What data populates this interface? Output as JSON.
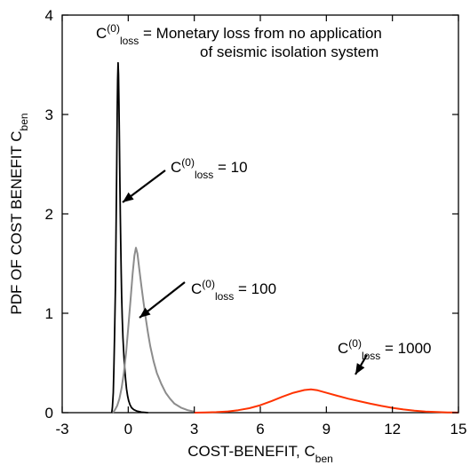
{
  "chart_data": {
    "type": "line",
    "xlabel": {
      "main": "COST-BENEFIT, C",
      "sub": "ben"
    },
    "ylabel": {
      "main": "PDF OF COST BENEFIT C",
      "sub": "ben"
    },
    "xlim": [
      -3,
      15
    ],
    "ylim": [
      0,
      4
    ],
    "xticks": [
      -3,
      0,
      3,
      6,
      9,
      12,
      15
    ],
    "yticks": [
      0,
      1,
      2,
      3,
      4
    ],
    "grid": false,
    "legend_note": {
      "line1_prefix": "C",
      "sup": "(0)",
      "sub": "loss",
      "line1_suffix": " = Monetary loss from no application",
      "line2": "of seismic isolation system"
    },
    "series": [
      {
        "key": "c10",
        "color": "#000000",
        "label": {
          "prefix": "C",
          "sup": "(0)",
          "sub": "loss",
          "suffix": " = 10"
        },
        "points": [
          [
            -0.75,
            0
          ],
          [
            -0.72,
            0.05
          ],
          [
            -0.68,
            0.2
          ],
          [
            -0.65,
            0.45
          ],
          [
            -0.62,
            0.8
          ],
          [
            -0.58,
            1.3
          ],
          [
            -0.55,
            1.9
          ],
          [
            -0.52,
            2.5
          ],
          [
            -0.5,
            3.0
          ],
          [
            -0.48,
            3.35
          ],
          [
            -0.46,
            3.52
          ],
          [
            -0.44,
            3.4
          ],
          [
            -0.42,
            3.1
          ],
          [
            -0.4,
            2.75
          ],
          [
            -0.38,
            2.35
          ],
          [
            -0.36,
            2.0
          ],
          [
            -0.34,
            1.7
          ],
          [
            -0.32,
            1.42
          ],
          [
            -0.3,
            1.18
          ],
          [
            -0.27,
            0.95
          ],
          [
            -0.24,
            0.75
          ],
          [
            -0.2,
            0.58
          ],
          [
            -0.16,
            0.44
          ],
          [
            -0.12,
            0.33
          ],
          [
            -0.08,
            0.24
          ],
          [
            -0.03,
            0.17
          ],
          [
            0.02,
            0.12
          ],
          [
            0.08,
            0.08
          ],
          [
            0.15,
            0.05
          ],
          [
            0.25,
            0.03
          ],
          [
            0.4,
            0.015
          ],
          [
            0.6,
            0.005
          ],
          [
            0.9,
            0
          ]
        ]
      },
      {
        "key": "c100",
        "color": "#8c8c8c",
        "label": {
          "prefix": "C",
          "sup": "(0)",
          "sub": "loss",
          "suffix": " = 100"
        },
        "points": [
          [
            -0.7,
            0
          ],
          [
            -0.6,
            0.03
          ],
          [
            -0.5,
            0.07
          ],
          [
            -0.4,
            0.14
          ],
          [
            -0.3,
            0.25
          ],
          [
            -0.2,
            0.4
          ],
          [
            -0.1,
            0.6
          ],
          [
            0,
            0.85
          ],
          [
            0.1,
            1.12
          ],
          [
            0.2,
            1.4
          ],
          [
            0.28,
            1.58
          ],
          [
            0.35,
            1.66
          ],
          [
            0.42,
            1.6
          ],
          [
            0.5,
            1.45
          ],
          [
            0.6,
            1.27
          ],
          [
            0.7,
            1.1
          ],
          [
            0.8,
            0.94
          ],
          [
            0.9,
            0.8
          ],
          [
            1.0,
            0.67
          ],
          [
            1.15,
            0.52
          ],
          [
            1.3,
            0.4
          ],
          [
            1.5,
            0.29
          ],
          [
            1.7,
            0.2
          ],
          [
            1.9,
            0.14
          ],
          [
            2.1,
            0.09
          ],
          [
            2.4,
            0.05
          ],
          [
            2.7,
            0.025
          ],
          [
            3.0,
            0.01
          ]
        ]
      },
      {
        "key": "c1000",
        "color": "#ff3300",
        "label": {
          "prefix": "C",
          "sup": "(0)",
          "sub": "loss",
          "suffix": " = 1000"
        },
        "points": [
          [
            3.0,
            0
          ],
          [
            3.5,
            0.002
          ],
          [
            4.0,
            0.005
          ],
          [
            4.5,
            0.012
          ],
          [
            5.0,
            0.025
          ],
          [
            5.5,
            0.045
          ],
          [
            6.0,
            0.075
          ],
          [
            6.5,
            0.115
          ],
          [
            7.0,
            0.16
          ],
          [
            7.5,
            0.2
          ],
          [
            8.0,
            0.228
          ],
          [
            8.3,
            0.235
          ],
          [
            8.6,
            0.225
          ],
          [
            9.0,
            0.2
          ],
          [
            9.5,
            0.17
          ],
          [
            10.0,
            0.14
          ],
          [
            10.5,
            0.115
          ],
          [
            11.0,
            0.09
          ],
          [
            11.5,
            0.068
          ],
          [
            12.0,
            0.048
          ],
          [
            12.5,
            0.032
          ],
          [
            13.0,
            0.02
          ],
          [
            13.5,
            0.012
          ],
          [
            14.0,
            0.007
          ],
          [
            14.5,
            0.003
          ],
          [
            15.0,
            0.001
          ]
        ]
      }
    ]
  }
}
